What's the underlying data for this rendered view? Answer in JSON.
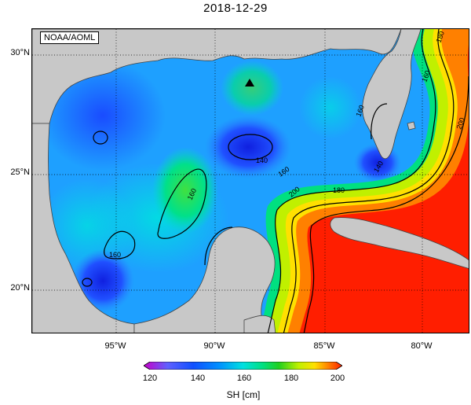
{
  "title": "2018-12-29",
  "credit": "NOAA/AOML",
  "lat_labels": [
    "30°N",
    "25°N",
    "20°N"
  ],
  "lon_labels": [
    "95°W",
    "90°W",
    "85°W",
    "80°W"
  ],
  "colorbar": {
    "label": "SH [cm]",
    "ticks": [
      "120",
      "140",
      "160",
      "180",
      "200"
    ],
    "range": [
      120,
      200
    ],
    "colors": [
      "#c800c8",
      "#6060ff",
      "#0090ff",
      "#00e0e0",
      "#00e080",
      "#20d020",
      "#c0f000",
      "#ffe000",
      "#ff8000",
      "#ff1e00"
    ]
  },
  "contour_labels": [
    "140",
    "160",
    "160",
    "160",
    "180",
    "200",
    "160",
    "160",
    "180",
    "200",
    "140"
  ],
  "marker": "station-triangle",
  "land_color": "#c8c8c8"
}
